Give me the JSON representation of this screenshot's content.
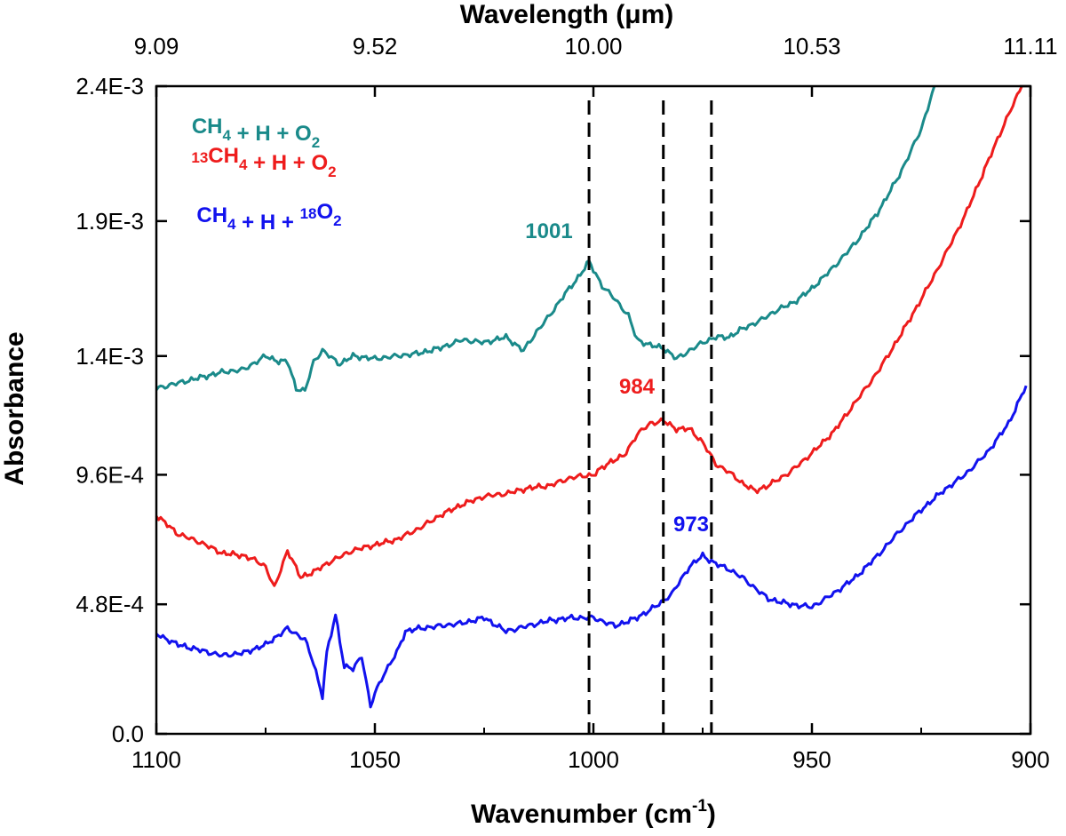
{
  "chart_data": {
    "type": "line",
    "xlabel": "Wavenumber (cm",
    "xlabel_sup": "-1",
    "xlabel_close": ")",
    "x2label": "Wavelength (μm)",
    "ylabel": "Absorbance",
    "xlim": [
      1100,
      900
    ],
    "ylim": [
      0,
      0.0024
    ],
    "x_ticks": [
      1100,
      1050,
      1000,
      950,
      900
    ],
    "x_tick_labels": [
      "1100",
      "1050",
      "1000",
      "950",
      "900"
    ],
    "top_ticks_wavenumber": [
      1100,
      1050,
      1000,
      950,
      900
    ],
    "top_tick_labels": [
      "9.09",
      "9.52",
      "10.00",
      "10.53",
      "11.11"
    ],
    "y_ticks": [
      0,
      0.00048,
      0.00096,
      0.0014,
      0.0019,
      0.0024
    ],
    "y_tick_labels": [
      "0.0",
      "4.8E-4",
      "9.6E-4",
      "1.4E-3",
      "1.9E-3",
      "2.4E-3"
    ],
    "vlines": [
      1001,
      984,
      973
    ],
    "series": [
      {
        "name": "CH4 + H + O2",
        "legend": [
          {
            "t": "CH"
          },
          {
            "t": "4",
            "sub": true
          },
          {
            "t": " + H + O"
          },
          {
            "t": "2",
            "sub": true
          }
        ],
        "color": "#1a8a8a",
        "peak": {
          "x": 1001,
          "label": "1001"
        },
        "x": [
          1100,
          1095,
          1090,
          1085,
          1080,
          1075,
          1072,
          1070,
          1068,
          1066,
          1064,
          1062,
          1058,
          1055,
          1050,
          1045,
          1040,
          1035,
          1030,
          1025,
          1020,
          1016,
          1013,
          1010,
          1007,
          1004,
          1001,
          998,
          995,
          992,
          990,
          987,
          984,
          981,
          978,
          975,
          972,
          969,
          966,
          962,
          958,
          954,
          950,
          945,
          940,
          935,
          930,
          925,
          922
        ],
        "y": [
          0.00128,
          0.0013,
          0.00132,
          0.00134,
          0.00135,
          0.0014,
          0.00138,
          0.00138,
          0.00128,
          0.00127,
          0.00138,
          0.00142,
          0.00137,
          0.0014,
          0.00139,
          0.0014,
          0.00141,
          0.00143,
          0.00146,
          0.00145,
          0.00147,
          0.00142,
          0.00149,
          0.00155,
          0.00162,
          0.00168,
          0.00175,
          0.00166,
          0.00161,
          0.00155,
          0.00146,
          0.00144,
          0.00143,
          0.00139,
          0.00142,
          0.00145,
          0.00147,
          0.00147,
          0.0015,
          0.00153,
          0.00157,
          0.0016,
          0.00165,
          0.00173,
          0.00182,
          0.00193,
          0.00207,
          0.00224,
          0.0024
        ]
      },
      {
        "name": "13CH4 + H + O2",
        "legend": [
          {
            "t": "13",
            "sup": true
          },
          {
            "t": "CH"
          },
          {
            "t": "4",
            "sub": true
          },
          {
            "t": " + H + O"
          },
          {
            "t": "2",
            "sub": true
          }
        ],
        "color": "#ee1c1c",
        "peak": {
          "x": 984,
          "label": "984"
        },
        "x": [
          1100,
          1095,
          1090,
          1085,
          1080,
          1077,
          1075,
          1073,
          1070,
          1067,
          1064,
          1060,
          1055,
          1050,
          1045,
          1040,
          1035,
          1030,
          1025,
          1020,
          1015,
          1010,
          1005,
          1000,
          996,
          993,
          990,
          987,
          984,
          981,
          978,
          975,
          972,
          969,
          966,
          963,
          960,
          955,
          950,
          945,
          940,
          935,
          930,
          925,
          920,
          915,
          910,
          906,
          902
        ],
        "y": [
          0.00081,
          0.00074,
          0.00071,
          0.00067,
          0.00066,
          0.00064,
          0.00062,
          0.00054,
          0.00068,
          0.00058,
          0.0006,
          0.00064,
          0.00068,
          0.0007,
          0.00072,
          0.00076,
          0.00081,
          0.00085,
          0.00088,
          0.00089,
          0.00091,
          0.00092,
          0.00095,
          0.00096,
          0.00101,
          0.00103,
          0.00111,
          0.00115,
          0.00116,
          0.00113,
          0.00113,
          0.00108,
          0.001,
          0.00097,
          0.00093,
          0.0009,
          0.00092,
          0.00097,
          0.00104,
          0.00112,
          0.00123,
          0.00134,
          0.00147,
          0.00161,
          0.00176,
          0.00192,
          0.00211,
          0.00226,
          0.0024
        ]
      },
      {
        "name": "CH4 + H + 18O2",
        "legend": [
          {
            "t": "CH"
          },
          {
            "t": "4",
            "sub": true
          },
          {
            "t": " + H + "
          },
          {
            "t": "18",
            "sup": true
          },
          {
            "t": "O"
          },
          {
            "t": "2",
            "sub": true
          }
        ],
        "color": "#1212ee",
        "peak": {
          "x": 973,
          "label": "973"
        },
        "x": [
          1100,
          1095,
          1090,
          1085,
          1080,
          1075,
          1070,
          1066,
          1064,
          1062,
          1061,
          1059,
          1057,
          1055,
          1053,
          1051,
          1050,
          1048,
          1045,
          1043,
          1040,
          1035,
          1030,
          1025,
          1020,
          1015,
          1010,
          1005,
          1000,
          995,
          990,
          985,
          982,
          978,
          975,
          972,
          969,
          966,
          963,
          960,
          955,
          950,
          945,
          940,
          935,
          930,
          925,
          920,
          915,
          910,
          905,
          901
        ],
        "y": [
          0.00037,
          0.00033,
          0.00031,
          0.00029,
          0.0003,
          0.00033,
          0.00039,
          0.00035,
          0.00026,
          0.00014,
          0.0003,
          0.00044,
          0.00025,
          0.00024,
          0.00029,
          0.0001,
          0.00015,
          0.00022,
          0.0003,
          0.00038,
          0.00039,
          0.0004,
          0.00041,
          0.00043,
          0.00038,
          0.0004,
          0.00042,
          0.00043,
          0.00043,
          0.0004,
          0.00043,
          0.00048,
          0.00052,
          0.00062,
          0.00066,
          0.00063,
          0.00061,
          0.00058,
          0.00054,
          0.0005,
          0.00048,
          0.00047,
          0.00052,
          0.00058,
          0.00066,
          0.00075,
          0.00083,
          0.0009,
          0.00096,
          0.00104,
          0.00115,
          0.00129
        ]
      }
    ]
  }
}
